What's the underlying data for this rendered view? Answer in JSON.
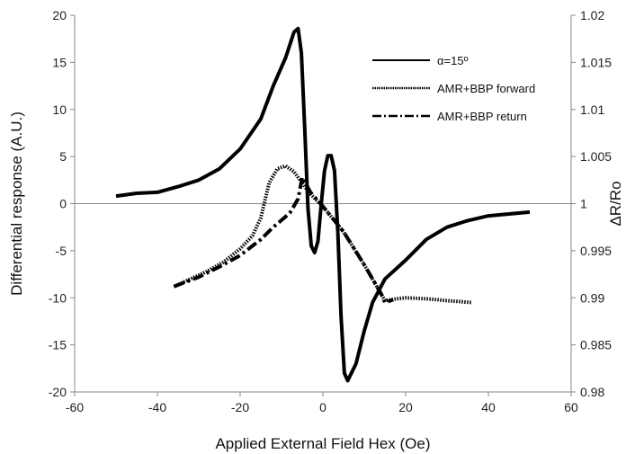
{
  "chart_data": {
    "type": "line",
    "xlabel": "Applied External Field Hex (Oe)",
    "ylabel": "Differential response (A.U.)",
    "y2label": "ΔR/Ro",
    "xlim": [
      -60,
      60
    ],
    "ylim": [
      -20,
      20
    ],
    "y2lim": [
      0.98,
      1.02
    ],
    "x_ticks": [
      "-60",
      "-40",
      "-20",
      "0",
      "20",
      "40",
      "60"
    ],
    "y_ticks": [
      "-20",
      "-15",
      "-10",
      "-5",
      "0",
      "5",
      "10",
      "15",
      "20"
    ],
    "y2_ticks": [
      "0.98",
      "0.985",
      "0.99",
      "0.995",
      "1",
      "1.005",
      "1.01",
      "1.015",
      "1.02"
    ],
    "grid": false,
    "legend_position": "top-right",
    "series": [
      {
        "name": "α=15º",
        "axis": "left",
        "style": "solid",
        "points": [
          [
            -50,
            0.8
          ],
          [
            -45,
            1.1
          ],
          [
            -40,
            1.2
          ],
          [
            -35,
            1.8
          ],
          [
            -30,
            2.5
          ],
          [
            -25,
            3.7
          ],
          [
            -20,
            5.8
          ],
          [
            -15,
            9
          ],
          [
            -12,
            12.5
          ],
          [
            -9,
            15.5
          ],
          [
            -7,
            18.2
          ],
          [
            -6,
            18.6
          ],
          [
            -5.2,
            16
          ],
          [
            -4.4,
            8
          ],
          [
            -3.6,
            -0.5
          ],
          [
            -2.8,
            -4.5
          ],
          [
            -2,
            -5.2
          ],
          [
            -1.2,
            -4
          ],
          [
            -0.4,
            0
          ],
          [
            0.4,
            3.5
          ],
          [
            1.2,
            5.1
          ],
          [
            2,
            5.1
          ],
          [
            2.8,
            3.5
          ],
          [
            3.6,
            -3
          ],
          [
            4.4,
            -12
          ],
          [
            5.2,
            -18
          ],
          [
            6,
            -18.8
          ],
          [
            8,
            -17
          ],
          [
            10,
            -13.5
          ],
          [
            12,
            -10.5
          ],
          [
            15,
            -8
          ],
          [
            20,
            -6
          ],
          [
            25,
            -3.8
          ],
          [
            30,
            -2.5
          ],
          [
            35,
            -1.8
          ],
          [
            40,
            -1.3
          ],
          [
            45,
            -1.1
          ],
          [
            50,
            -0.9
          ]
        ]
      },
      {
        "name": "AMR+BBP forward",
        "axis": "right",
        "style": "dotted",
        "points": [
          [
            -36,
            0.9912
          ],
          [
            -32,
            0.992
          ],
          [
            -28,
            0.9928
          ],
          [
            -24,
            0.9938
          ],
          [
            -20,
            0.9952
          ],
          [
            -17,
            0.9966
          ],
          [
            -15,
            0.9985
          ],
          [
            -13,
            1.0022
          ],
          [
            -11,
            1.0037
          ],
          [
            -9,
            1.004
          ],
          [
            -7,
            1.0034
          ],
          [
            -5,
            1.0022
          ],
          [
            -3,
            1.001
          ],
          [
            0,
            0.9997
          ],
          [
            5,
            0.997
          ],
          [
            10,
            0.9935
          ],
          [
            15,
            0.9897
          ],
          [
            18,
            0.9899
          ],
          [
            20,
            0.99
          ],
          [
            25,
            0.9899
          ],
          [
            30,
            0.9897
          ],
          [
            36,
            0.9895
          ]
        ]
      },
      {
        "name": "AMR+BBP return",
        "axis": "right",
        "style": "dashdot",
        "points": [
          [
            -36,
            0.9912
          ],
          [
            -30,
            0.9922
          ],
          [
            -25,
            0.9933
          ],
          [
            -20,
            0.9945
          ],
          [
            -15,
            0.9962
          ],
          [
            -12,
            0.9975
          ],
          [
            -8,
            0.999
          ],
          [
            -6,
            1.0005
          ],
          [
            -5,
            1.0028
          ],
          [
            -3,
            1.0012
          ],
          [
            0,
            0.9997
          ],
          [
            5,
            0.997
          ],
          [
            10,
            0.9935
          ],
          [
            14,
            0.9905
          ],
          [
            15,
            0.9895
          ],
          [
            17,
            0.9898
          ]
        ]
      }
    ]
  }
}
